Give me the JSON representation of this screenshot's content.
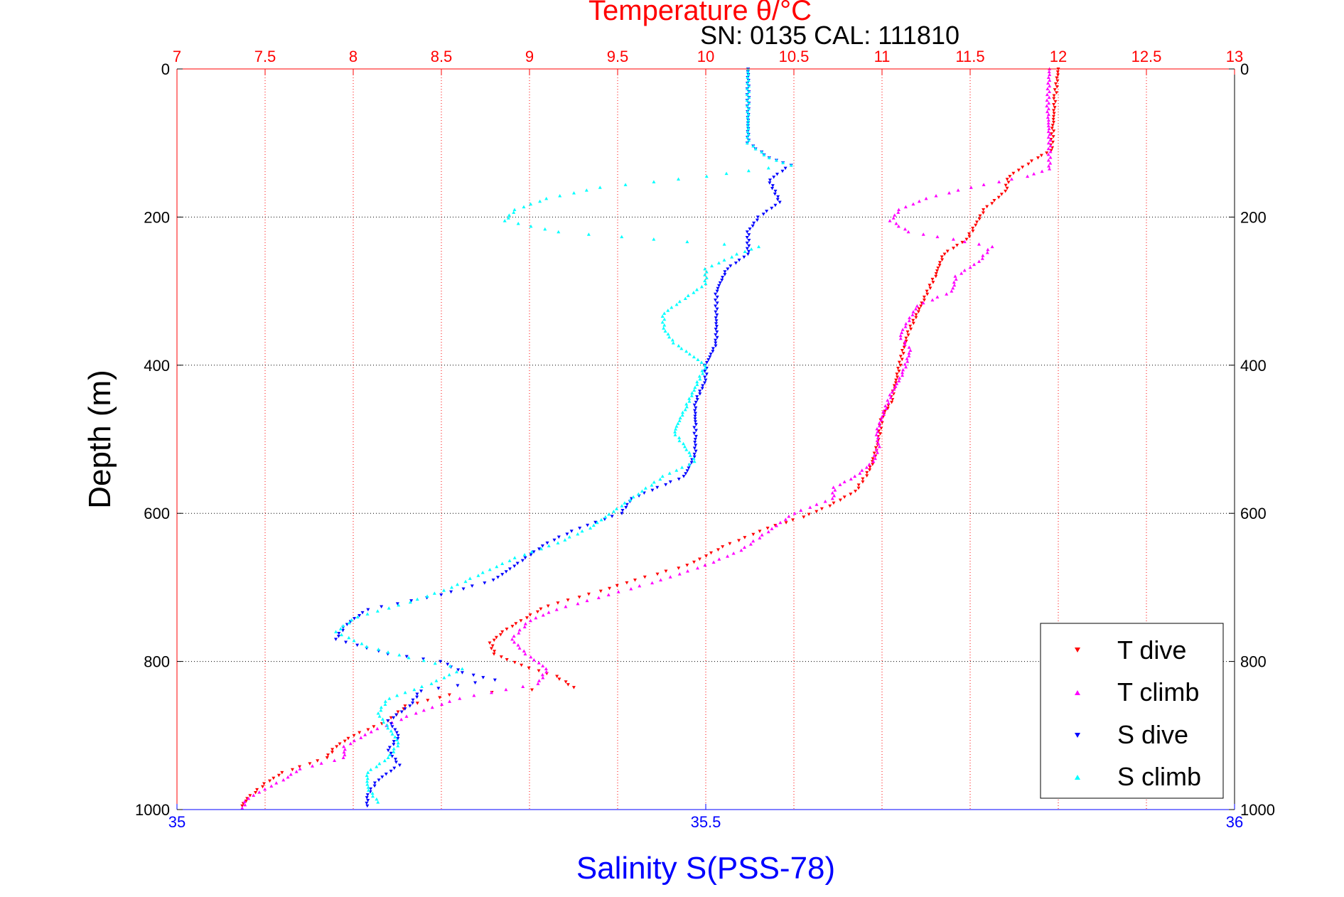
{
  "chart_data": {
    "type": "scatter",
    "title": "Temperature θ/°C",
    "subtitle": "SN: 0135  CAL: 111810",
    "xlabel_top": "Temperature θ/°C",
    "xlabel_bottom": "Salinity S(PSS-78)",
    "ylabel": "Depth (m)",
    "temperature_axis": {
      "range": [
        7,
        13
      ],
      "ticks": [
        7,
        7.5,
        8,
        8.5,
        9,
        9.5,
        10,
        10.5,
        11,
        11.5,
        12,
        12.5,
        13
      ],
      "tick_labels": [
        "7",
        "7.5",
        "8",
        "8.5",
        "9",
        "9.5",
        "10",
        "10.5",
        "11",
        "11.5",
        "12",
        "12.5",
        "13"
      ]
    },
    "salinity_axis": {
      "range": [
        35,
        36
      ],
      "ticks": [
        35,
        35.5,
        36
      ],
      "tick_labels": [
        "35",
        "35.5",
        "36"
      ]
    },
    "depth_axis": {
      "range": [
        0,
        1000
      ],
      "reversed": true,
      "ticks": [
        0,
        200,
        400,
        600,
        800,
        1000
      ],
      "tick_labels": [
        "0",
        "200",
        "400",
        "600",
        "800",
        "1000"
      ]
    },
    "grid": true,
    "legend_position": "bottom-right",
    "series": [
      {
        "name": "T dive",
        "axis": "temperature",
        "color": "#ff0000",
        "marker": "triangle-down",
        "points": [
          [
            12.0,
            0
          ],
          [
            11.98,
            40
          ],
          [
            11.97,
            80
          ],
          [
            11.96,
            110
          ],
          [
            11.88,
            120
          ],
          [
            11.72,
            145
          ],
          [
            11.7,
            165
          ],
          [
            11.58,
            190
          ],
          [
            11.52,
            215
          ],
          [
            11.48,
            230
          ],
          [
            11.35,
            250
          ],
          [
            11.3,
            280
          ],
          [
            11.22,
            320
          ],
          [
            11.15,
            355
          ],
          [
            11.12,
            380
          ],
          [
            11.08,
            420
          ],
          [
            11.05,
            450
          ],
          [
            11.0,
            470
          ],
          [
            10.98,
            500
          ],
          [
            10.95,
            530
          ],
          [
            10.92,
            545
          ],
          [
            10.85,
            570
          ],
          [
            10.7,
            590
          ],
          [
            10.55,
            605
          ],
          [
            10.35,
            620
          ],
          [
            10.1,
            645
          ],
          [
            9.9,
            670
          ],
          [
            9.6,
            690
          ],
          [
            9.4,
            705
          ],
          [
            9.1,
            725
          ],
          [
            8.95,
            745
          ],
          [
            8.85,
            760
          ],
          [
            8.78,
            775
          ],
          [
            8.8,
            790
          ],
          [
            8.95,
            805
          ],
          [
            9.15,
            820
          ],
          [
            9.25,
            835
          ],
          [
            8.55,
            845
          ],
          [
            8.3,
            860
          ],
          [
            8.2,
            880
          ],
          [
            8.0,
            900
          ],
          [
            7.9,
            915
          ],
          [
            7.85,
            930
          ],
          [
            7.6,
            950
          ],
          [
            7.5,
            965
          ],
          [
            7.4,
            985
          ],
          [
            7.37,
            995
          ]
        ]
      },
      {
        "name": "T climb",
        "axis": "temperature",
        "color": "#ff00ff",
        "marker": "triangle-up",
        "points": [
          [
            11.95,
            0
          ],
          [
            11.94,
            50
          ],
          [
            11.95,
            100
          ],
          [
            11.95,
            135
          ],
          [
            11.82,
            145
          ],
          [
            11.5,
            160
          ],
          [
            11.25,
            175
          ],
          [
            11.1,
            190
          ],
          [
            11.05,
            205
          ],
          [
            11.15,
            220
          ],
          [
            11.4,
            230
          ],
          [
            11.62,
            240
          ],
          [
            11.55,
            260
          ],
          [
            11.42,
            280
          ],
          [
            11.4,
            300
          ],
          [
            11.2,
            320
          ],
          [
            11.15,
            340
          ],
          [
            11.1,
            360
          ],
          [
            11.16,
            380
          ],
          [
            11.12,
            410
          ],
          [
            11.05,
            440
          ],
          [
            11.0,
            470
          ],
          [
            10.97,
            490
          ],
          [
            10.98,
            510
          ],
          [
            10.95,
            530
          ],
          [
            10.85,
            550
          ],
          [
            10.73,
            565
          ],
          [
            10.72,
            580
          ],
          [
            10.5,
            600
          ],
          [
            10.35,
            625
          ],
          [
            10.2,
            650
          ],
          [
            10.0,
            670
          ],
          [
            9.75,
            690
          ],
          [
            9.45,
            710
          ],
          [
            9.15,
            730
          ],
          [
            9.0,
            745
          ],
          [
            8.9,
            770
          ],
          [
            8.98,
            790
          ],
          [
            9.1,
            810
          ],
          [
            9.05,
            830
          ],
          [
            8.6,
            850
          ],
          [
            8.35,
            870
          ],
          [
            8.1,
            895
          ],
          [
            7.95,
            915
          ],
          [
            7.95,
            930
          ],
          [
            7.7,
            945
          ],
          [
            7.6,
            960
          ],
          [
            7.4,
            985
          ],
          [
            7.37,
            998
          ]
        ]
      },
      {
        "name": "S dive",
        "axis": "salinity",
        "color": "#0000ff",
        "marker": "triangle-down",
        "points": [
          [
            35.54,
            0
          ],
          [
            35.54,
            50
          ],
          [
            35.54,
            100
          ],
          [
            35.56,
            120
          ],
          [
            35.58,
            130
          ],
          [
            35.56,
            150
          ],
          [
            35.57,
            180
          ],
          [
            35.55,
            200
          ],
          [
            35.54,
            220
          ],
          [
            35.54,
            250
          ],
          [
            35.52,
            270
          ],
          [
            35.51,
            300
          ],
          [
            35.51,
            340
          ],
          [
            35.51,
            370
          ],
          [
            35.5,
            400
          ],
          [
            35.5,
            420
          ],
          [
            35.49,
            450
          ],
          [
            35.49,
            480
          ],
          [
            35.49,
            500
          ],
          [
            35.49,
            520
          ],
          [
            35.48,
            550
          ],
          [
            35.43,
            580
          ],
          [
            35.42,
            600
          ],
          [
            35.38,
            620
          ],
          [
            35.35,
            640
          ],
          [
            35.33,
            660
          ],
          [
            35.3,
            690
          ],
          [
            35.25,
            710
          ],
          [
            35.18,
            730
          ],
          [
            35.16,
            750
          ],
          [
            35.15,
            770
          ],
          [
            35.2,
            790
          ],
          [
            35.25,
            800
          ],
          [
            35.27,
            815
          ],
          [
            35.3,
            825
          ],
          [
            35.23,
            840
          ],
          [
            35.22,
            860
          ],
          [
            35.2,
            880
          ],
          [
            35.21,
            900
          ],
          [
            35.2,
            920
          ],
          [
            35.21,
            940
          ],
          [
            35.19,
            960
          ],
          [
            35.18,
            980
          ],
          [
            35.18,
            995
          ]
        ]
      },
      {
        "name": "S climb",
        "axis": "salinity",
        "color": "#00ffff",
        "marker": "triangle-up",
        "points": [
          [
            35.54,
            0
          ],
          [
            35.54,
            50
          ],
          [
            35.54,
            100
          ],
          [
            35.56,
            120
          ],
          [
            35.58,
            130
          ],
          [
            35.5,
            145
          ],
          [
            35.4,
            160
          ],
          [
            35.35,
            175
          ],
          [
            35.32,
            190
          ],
          [
            35.31,
            205
          ],
          [
            35.36,
            220
          ],
          [
            35.45,
            230
          ],
          [
            35.55,
            240
          ],
          [
            35.53,
            250
          ],
          [
            35.5,
            270
          ],
          [
            35.5,
            290
          ],
          [
            35.48,
            310
          ],
          [
            35.46,
            330
          ],
          [
            35.46,
            350
          ],
          [
            35.47,
            370
          ],
          [
            35.5,
            400
          ],
          [
            35.49,
            430
          ],
          [
            35.48,
            460
          ],
          [
            35.47,
            490
          ],
          [
            35.48,
            510
          ],
          [
            35.49,
            530
          ],
          [
            35.46,
            550
          ],
          [
            35.44,
            570
          ],
          [
            35.42,
            590
          ],
          [
            35.39,
            620
          ],
          [
            35.36,
            640
          ],
          [
            35.32,
            660
          ],
          [
            35.29,
            680
          ],
          [
            35.26,
            700
          ],
          [
            35.22,
            720
          ],
          [
            35.17,
            740
          ],
          [
            35.15,
            760
          ],
          [
            35.18,
            780
          ],
          [
            35.22,
            795
          ],
          [
            35.27,
            810
          ],
          [
            35.24,
            830
          ],
          [
            35.2,
            850
          ],
          [
            35.19,
            870
          ],
          [
            35.2,
            890
          ],
          [
            35.21,
            910
          ],
          [
            35.2,
            930
          ],
          [
            35.18,
            950
          ],
          [
            35.18,
            970
          ],
          [
            35.19,
            990
          ]
        ]
      }
    ]
  }
}
